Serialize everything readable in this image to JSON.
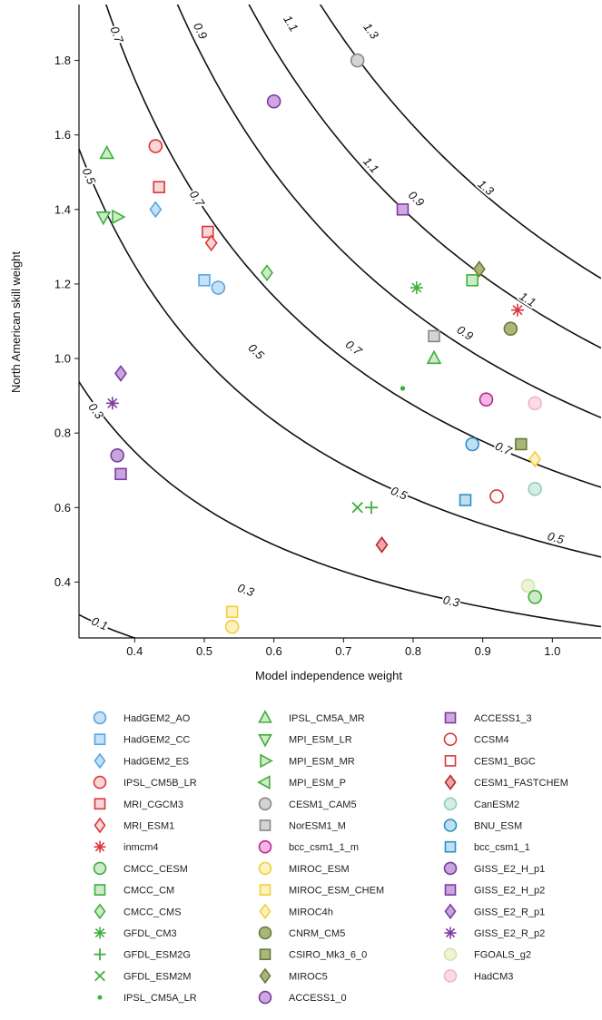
{
  "chart_data": {
    "type": "scatter",
    "title": "",
    "xlabel": "Model independence weight",
    "ylabel": "North American skill weight",
    "xlim": [
      0.32,
      1.07
    ],
    "ylim": [
      0.25,
      1.95
    ],
    "xticks": [
      "0.4",
      "0.5",
      "0.6",
      "0.7",
      "0.8",
      "0.9",
      "1.0"
    ],
    "yticks": [
      "0.4",
      "0.6",
      "0.8",
      "1.0",
      "1.2",
      "1.4",
      "1.6",
      "1.8"
    ],
    "grid": false,
    "contour_levels": [
      0.1,
      0.3,
      0.5,
      0.7,
      0.9,
      1.1,
      1.3
    ],
    "contour_labels": [
      {
        "text": "0.1",
        "x": 0.35,
        "y": 0.29
      },
      {
        "text": "0.3",
        "x": 0.345,
        "y": 0.86
      },
      {
        "text": "0.3",
        "x": 0.56,
        "y": 0.38
      },
      {
        "text": "0.3",
        "x": 0.855,
        "y": 0.35
      },
      {
        "text": "0.5",
        "x": 0.335,
        "y": 1.49
      },
      {
        "text": "0.5",
        "x": 0.575,
        "y": 1.02
      },
      {
        "text": "0.5",
        "x": 0.78,
        "y": 0.64
      },
      {
        "text": "0.5",
        "x": 1.005,
        "y": 0.52
      },
      {
        "text": "0.7",
        "x": 0.375,
        "y": 1.87
      },
      {
        "text": "0.7",
        "x": 0.49,
        "y": 1.43
      },
      {
        "text": "0.7",
        "x": 0.715,
        "y": 1.03
      },
      {
        "text": "0.7",
        "x": 0.93,
        "y": 0.76
      },
      {
        "text": "0.9",
        "x": 0.495,
        "y": 1.88
      },
      {
        "text": "0.9",
        "x": 0.805,
        "y": 1.43
      },
      {
        "text": "0.9",
        "x": 0.875,
        "y": 1.07
      },
      {
        "text": "1.1",
        "x": 0.625,
        "y": 1.9
      },
      {
        "text": "1.1",
        "x": 0.74,
        "y": 1.52
      },
      {
        "text": "1.1",
        "x": 0.965,
        "y": 1.16
      },
      {
        "text": "1.3",
        "x": 0.74,
        "y": 1.88
      },
      {
        "text": "1.3",
        "x": 0.905,
        "y": 1.46
      }
    ],
    "series": [
      {
        "name": "HadGEM2_AO",
        "marker": "circle",
        "color": "#59a5e0",
        "fill": "#c5e1f7",
        "points": [
          [
            0.52,
            1.19
          ]
        ]
      },
      {
        "name": "HadGEM2_CC",
        "marker": "square",
        "color": "#59a5e0",
        "fill": "#c5e1f7",
        "points": [
          [
            0.5,
            1.21
          ]
        ]
      },
      {
        "name": "HadGEM2_ES",
        "marker": "diamond",
        "color": "#59a5e0",
        "fill": "#c5e1f7",
        "points": [
          [
            0.43,
            1.4
          ]
        ]
      },
      {
        "name": "IPSL_CM5B_LR",
        "marker": "circle",
        "color": "#d9373c",
        "fill": "#f9d6d6",
        "points": [
          [
            0.43,
            1.57
          ]
        ]
      },
      {
        "name": "MRI_CGCM3",
        "marker": "square",
        "color": "#d9373c",
        "fill": "#f9d6d6",
        "points": [
          [
            0.435,
            1.46
          ],
          [
            0.505,
            1.34
          ]
        ]
      },
      {
        "name": "MRI_ESM1",
        "marker": "diamond",
        "color": "#d9373c",
        "fill": "#f9d6d6",
        "points": [
          [
            0.51,
            1.31
          ]
        ]
      },
      {
        "name": "inmcm4",
        "marker": "asterisk",
        "color": "#d9373c",
        "fill": "none",
        "points": [
          [
            0.95,
            1.13
          ]
        ]
      },
      {
        "name": "CMCC_CESM",
        "marker": "circle",
        "color": "#3fae3c",
        "fill": "#cdebc8",
        "points": []
      },
      {
        "name": "CMCC_CM",
        "marker": "square",
        "color": "#3fae3c",
        "fill": "#cdebc8",
        "points": [
          [
            0.885,
            1.21
          ]
        ]
      },
      {
        "name": "CMCC_CMS",
        "marker": "diamond",
        "color": "#3fae3c",
        "fill": "#cdebc8",
        "points": [
          [
            0.59,
            1.23
          ]
        ]
      },
      {
        "name": "GFDL_CM3",
        "marker": "asterisk",
        "color": "#3fae3c",
        "fill": "none",
        "points": [
          [
            0.805,
            1.19
          ]
        ]
      },
      {
        "name": "GFDL_ESM2G",
        "marker": "plus",
        "color": "#3fae3c",
        "fill": "none",
        "points": [
          [
            0.74,
            0.6
          ]
        ]
      },
      {
        "name": "GFDL_ESM2M",
        "marker": "cross",
        "color": "#3fae3c",
        "fill": "none",
        "points": [
          [
            0.72,
            0.6
          ]
        ]
      },
      {
        "name": "IPSL_CM5A_LR",
        "marker": "dot",
        "color": "#3fae3c",
        "fill": "#3fae3c",
        "points": [
          [
            0.785,
            0.92
          ]
        ]
      },
      {
        "name": "IPSL_CM5A_MR",
        "marker": "triangle-up",
        "color": "#3fae3c",
        "fill": "#cdebc8",
        "points": [
          [
            0.83,
            1.0
          ],
          [
            0.36,
            1.55
          ]
        ]
      },
      {
        "name": "MPI_ESM_LR",
        "marker": "triangle-down",
        "color": "#3fae3c",
        "fill": "#cdebc8",
        "points": [
          [
            0.355,
            1.38
          ]
        ]
      },
      {
        "name": "MPI_ESM_MR",
        "marker": "triangle-right",
        "color": "#3fae3c",
        "fill": "#cdebc8",
        "points": [
          [
            0.375,
            1.38
          ]
        ]
      },
      {
        "name": "MPI_ESM_P",
        "marker": "triangle-left",
        "color": "#3fae3c",
        "fill": "#cdebc8",
        "points": []
      },
      {
        "name": "CESM1_CAM5",
        "marker": "circle",
        "color": "#888888",
        "fill": "#d4d4d4",
        "points": [
          [
            0.72,
            1.8
          ]
        ]
      },
      {
        "name": "NorESM1_M",
        "marker": "square",
        "color": "#888888",
        "fill": "#d4d4d4",
        "points": [
          [
            0.83,
            1.06
          ]
        ]
      },
      {
        "name": "bcc_csm1_1_m",
        "marker": "circle",
        "color": "#c0239b",
        "fill": "#f2b8e2",
        "points": [
          [
            0.905,
            0.89
          ]
        ]
      },
      {
        "name": "MIROC_ESM",
        "marker": "circle",
        "color": "#f2cf3a",
        "fill": "#fdf1c2",
        "points": [
          [
            0.54,
            0.28
          ]
        ]
      },
      {
        "name": "MIROC_ESM_CHEM",
        "marker": "square",
        "color": "#f2cf3a",
        "fill": "#fdf1c2",
        "points": [
          [
            0.54,
            0.32
          ]
        ]
      },
      {
        "name": "MIROC4h",
        "marker": "diamond",
        "color": "#f2cf3a",
        "fill": "#fdf1c2",
        "points": [
          [
            0.975,
            0.73
          ]
        ]
      },
      {
        "name": "CNRM_CM5",
        "marker": "circle",
        "color": "#6b7a38",
        "fill": "#a9b77a",
        "points": [
          [
            0.94,
            1.08
          ]
        ]
      },
      {
        "name": "CSIRO_Mk3_6_0",
        "marker": "square",
        "color": "#6b7a38",
        "fill": "#a9b77a",
        "points": [
          [
            0.955,
            0.77
          ]
        ]
      },
      {
        "name": "MIROC5",
        "marker": "diamond",
        "color": "#6b7a38",
        "fill": "#a9b77a",
        "points": [
          [
            0.895,
            1.24
          ]
        ]
      },
      {
        "name": "ACCESS1_0",
        "marker": "circle",
        "color": "#7d3aa0",
        "fill": "#cfa8e1",
        "points": [
          [
            0.6,
            1.69
          ]
        ]
      },
      {
        "name": "ACCESS1_3",
        "marker": "square",
        "color": "#7d3aa0",
        "fill": "#cfa8e1",
        "points": [
          [
            0.785,
            1.4
          ]
        ]
      },
      {
        "name": "CCSM4",
        "marker": "circle",
        "color": "#d9373c",
        "fill": "#ffffff",
        "points": [
          [
            0.92,
            0.63
          ]
        ]
      },
      {
        "name": "CESM1_BGC",
        "marker": "square",
        "color": "#d9373c",
        "fill": "#ffffff",
        "points": []
      },
      {
        "name": "CESM1_FASTCHEM",
        "marker": "diamond",
        "color": "#b02a2e",
        "fill": "#f5a3a5",
        "points": [
          [
            0.755,
            0.5
          ]
        ]
      },
      {
        "name": "CanESM2",
        "marker": "circle",
        "color": "#8fd0b8",
        "fill": "#d4eee4",
        "points": [
          [
            0.975,
            0.65
          ]
        ]
      },
      {
        "name": "BNU_ESM",
        "marker": "circle",
        "color": "#2b8fc7",
        "fill": "#bfe0f3",
        "points": [
          [
            0.885,
            0.77
          ]
        ]
      },
      {
        "name": "bcc_csm1_1",
        "marker": "square",
        "color": "#2b8fc7",
        "fill": "#bfe0f3",
        "points": [
          [
            0.875,
            0.62
          ]
        ]
      },
      {
        "name": "GISS_E2_H_p1",
        "marker": "circle",
        "color": "#7d3aa0",
        "fill": "#c6a6dc",
        "points": [
          [
            0.375,
            0.74
          ]
        ]
      },
      {
        "name": "GISS_E2_H_p2",
        "marker": "square",
        "color": "#7d3aa0",
        "fill": "#c6a6dc",
        "points": [
          [
            0.38,
            0.69
          ]
        ]
      },
      {
        "name": "GISS_E2_R_p1",
        "marker": "diamond",
        "color": "#7d3aa0",
        "fill": "#c6a6dc",
        "points": [
          [
            0.38,
            0.96
          ]
        ]
      },
      {
        "name": "GISS_E2_R_p2",
        "marker": "asterisk",
        "color": "#7d3aa0",
        "fill": "none",
        "points": [
          [
            0.368,
            0.88
          ]
        ]
      },
      {
        "name": "FGOALS_g2",
        "marker": "circle",
        "color": "#d6e3a9",
        "fill": "#eef4d6",
        "points": [
          [
            0.965,
            0.39
          ]
        ]
      },
      {
        "name": "HadCM3",
        "marker": "circle",
        "color": "#f3b3c6",
        "fill": "#fbdbe5",
        "points": [
          [
            0.975,
            0.88
          ]
        ]
      }
    ],
    "extra_points": [
      {
        "series": "CMCC_CESM",
        "x": 0.975,
        "y": 0.36
      }
    ],
    "legend_placement": "bottom, three columns"
  }
}
